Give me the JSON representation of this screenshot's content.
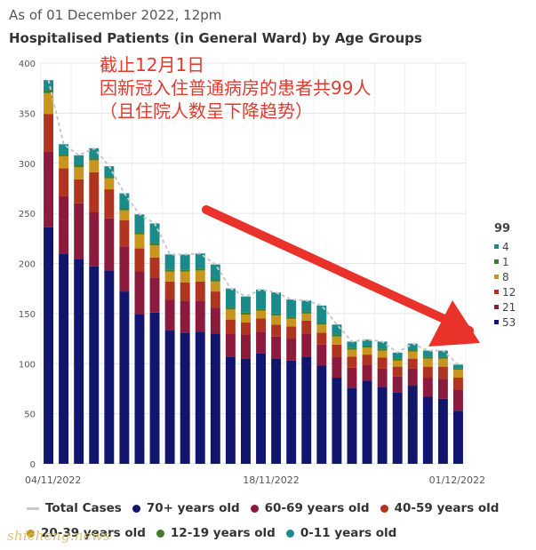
{
  "header": {
    "as_of": "As of 01 December 2022, 12pm",
    "title": "Hospitalised Patients (in General Ward) by Age Groups"
  },
  "annotation": {
    "lines": [
      "截止12月1日",
      "因新冠入住普通病房的患者共99人",
      "（且住院人数呈下降趋势）"
    ]
  },
  "side_summary": {
    "total": "99",
    "items": [
      {
        "value": "4",
        "color": "#1a8a8a"
      },
      {
        "value": "1",
        "color": "#3f7d2a"
      },
      {
        "value": "8",
        "color": "#c8951f"
      },
      {
        "value": "12",
        "color": "#b0341f"
      },
      {
        "value": "21",
        "color": "#8b1a3c"
      },
      {
        "value": "53",
        "color": "#12156e"
      }
    ]
  },
  "legend": {
    "items": [
      {
        "label": "Total Cases",
        "type": "line",
        "color": "#c8c8c8"
      },
      {
        "label": "70+ years old",
        "color": "#12156e"
      },
      {
        "label": "60-69 years old",
        "color": "#8b1a3c"
      },
      {
        "label": "40-59 years old",
        "color": "#b0341f"
      },
      {
        "label": "20-39 years old",
        "color": "#c8951f"
      },
      {
        "label": "12-19 years old",
        "color": "#3f7d2a"
      },
      {
        "label": "0-11 years old",
        "color": "#1a8a8a"
      }
    ]
  },
  "watermark": "shicheng.news",
  "chart_data": {
    "type": "bar",
    "stacked": true,
    "ylim": [
      0,
      400
    ],
    "yticks": [
      0,
      50,
      100,
      150,
      200,
      250,
      300,
      350,
      400
    ],
    "x_tick_labels": [
      "04/11/2022",
      "18/11/2022",
      "01/12/2022"
    ],
    "grid": true,
    "categories": [
      "04/11",
      "05/11",
      "06/11",
      "07/11",
      "08/11",
      "09/11",
      "10/11",
      "11/11",
      "12/11",
      "13/11",
      "14/11",
      "15/11",
      "16/11",
      "17/11",
      "18/11",
      "19/11",
      "20/11",
      "21/11",
      "22/11",
      "23/11",
      "24/11",
      "25/11",
      "26/11",
      "27/11",
      "28/11",
      "29/11",
      "30/11",
      "01/12"
    ],
    "series": [
      {
        "name": "70+ years old",
        "color": "#12156e",
        "values": [
          236,
          210,
          204,
          197,
          193,
          172,
          149,
          151,
          133,
          131,
          132,
          130,
          107,
          105,
          110,
          105,
          103,
          107,
          98,
          86,
          76,
          83,
          77,
          71,
          78,
          67,
          65,
          53
        ]
      },
      {
        "name": "60-69 years old",
        "color": "#8b1a3c",
        "values": [
          76,
          57,
          56,
          54,
          52,
          45,
          43,
          35,
          31,
          32,
          31,
          26,
          23,
          24,
          22,
          22,
          22,
          23,
          21,
          21,
          20,
          16,
          18,
          16,
          17,
          19,
          20,
          21
        ]
      },
      {
        "name": "40-59 years old",
        "color": "#b0341f",
        "values": [
          37,
          28,
          24,
          40,
          29,
          26,
          23,
          20,
          18,
          18,
          19,
          16,
          14,
          12,
          13,
          12,
          12,
          13,
          12,
          12,
          11,
          10,
          11,
          10,
          10,
          11,
          12,
          12
        ]
      },
      {
        "name": "20-39 years old",
        "color": "#c8951f",
        "values": [
          21,
          12,
          12,
          12,
          11,
          10,
          14,
          12,
          10,
          11,
          11,
          10,
          10,
          8,
          8,
          9,
          8,
          7,
          8,
          8,
          7,
          7,
          7,
          6,
          7,
          8,
          8,
          8
        ]
      },
      {
        "name": "12-19 years old",
        "color": "#3f7d2a",
        "values": [
          3,
          2,
          2,
          2,
          2,
          2,
          2,
          2,
          2,
          2,
          2,
          2,
          2,
          2,
          2,
          2,
          2,
          2,
          2,
          2,
          2,
          2,
          2,
          2,
          2,
          2,
          2,
          1
        ]
      },
      {
        "name": "0-11 years old",
        "color": "#1a8a8a",
        "values": [
          10,
          10,
          10,
          10,
          10,
          15,
          18,
          20,
          15,
          15,
          15,
          15,
          19,
          16,
          19,
          21,
          17,
          11,
          17,
          10,
          6,
          6,
          7,
          6,
          6,
          6,
          6,
          4
        ]
      }
    ],
    "total_cases": [
      383,
      319,
      308,
      315,
      297,
      270,
      249,
      240,
      209,
      209,
      210,
      199,
      175,
      167,
      174,
      171,
      164,
      163,
      158,
      139,
      122,
      124,
      122,
      111,
      120,
      113,
      113,
      99
    ],
    "legend_position": "bottom"
  }
}
